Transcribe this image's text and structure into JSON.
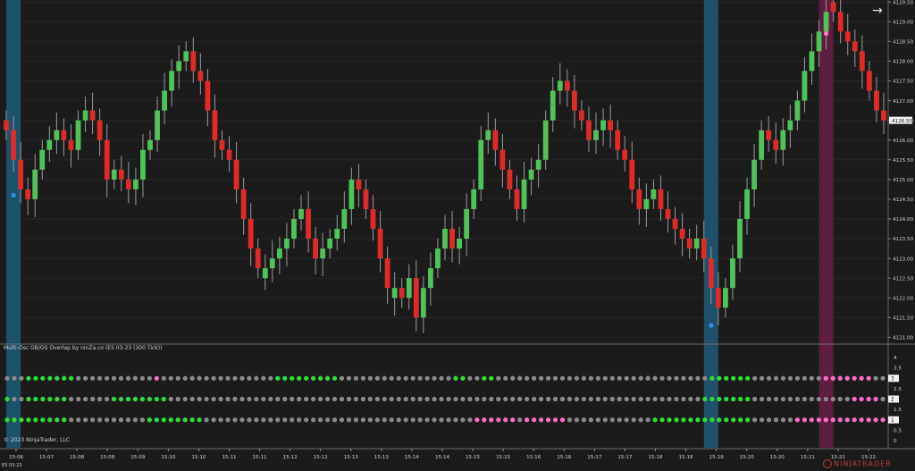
{
  "chart_data": {
    "type": "candlestick",
    "price_axis": {
      "ticks": [
        "4121.00",
        "4121.50",
        "4122.00",
        "4122.50",
        "4123.00",
        "4123.50",
        "4124.00",
        "4124.50",
        "4125.00",
        "4125.50",
        "4126.00",
        "4126.50",
        "4127.00",
        "4127.50",
        "4128.00",
        "4128.50",
        "4129.00",
        "4129.50"
      ],
      "range": [
        4120.85,
        4129.55
      ],
      "current_price": "4126.50"
    },
    "time_axis": {
      "labels": [
        "15:06",
        "15:07",
        "15:08",
        "15:08",
        "15:09",
        "15:10",
        "15:10",
        "15:11",
        "15:11",
        "15:12",
        "15:12",
        "15:13",
        "15:13",
        "15:14",
        "15:14",
        "15:15",
        "15:15",
        "15:16",
        "15:16",
        "15:17",
        "15:17",
        "15:18",
        "15:18",
        "15:19",
        "15:20",
        "15:20",
        "15:21",
        "15:21",
        "15:22"
      ]
    },
    "candles_close": [
      4126.25,
      4125.5,
      4124.75,
      4124.5,
      4125.25,
      4125.75,
      4126.0,
      4126.25,
      4126.0,
      4125.75,
      4126.5,
      4126.75,
      4126.5,
      4126.0,
      4125.0,
      4125.25,
      4125.0,
      4124.75,
      4125.0,
      4125.75,
      4126.0,
      4126.75,
      4127.25,
      4127.75,
      4128.0,
      4128.25,
      4127.75,
      4127.5,
      4126.75,
      4126.0,
      4125.75,
      4125.5,
      4124.75,
      4124.0,
      4123.25,
      4122.75,
      4122.75,
      4123.0,
      4123.25,
      4123.5,
      4124.0,
      4124.25,
      4123.5,
      4123.0,
      4123.25,
      4123.5,
      4123.75,
      4124.25,
      4125.0,
      4124.75,
      4124.25,
      4123.75,
      4123.0,
      4122.25,
      4122.25,
      4122.0,
      4122.5,
      4121.5,
      4122.25,
      4122.75,
      4123.25,
      4123.75,
      4123.25,
      4123.5,
      4124.25,
      4124.75,
      4126.0,
      4126.25,
      4125.75,
      4125.25,
      4124.75,
      4124.25,
      4125.0,
      4125.25,
      4125.5,
      4126.5,
      4127.25,
      4127.5,
      4127.25,
      4126.75,
      4126.5,
      4126.0,
      4126.25,
      4126.5,
      4126.25,
      4125.75,
      4125.5,
      4124.75,
      4124.25,
      4124.5,
      4124.75,
      4124.25,
      4124.0,
      4123.75,
      4123.5,
      4123.25,
      4123.5,
      4123.0,
      4122.25,
      4121.75,
      4122.25,
      4123.0,
      4124.0,
      4124.75,
      4125.5,
      4126.25,
      4126.0,
      4125.75,
      4126.25,
      4126.5,
      4127.0,
      4127.75,
      4128.25,
      4128.75,
      4129.25,
      4129.25,
      4128.75,
      4128.5,
      4128.25,
      4127.75,
      4127.25,
      4126.75,
      4126.5
    ],
    "highlight_bands": [
      {
        "candle_index": 1,
        "color": "#1e5a78"
      },
      {
        "candle_index": 98,
        "color": "#1e5a78"
      },
      {
        "candle_index": 114,
        "color": "#6a1f47"
      }
    ],
    "signal_dots": [
      {
        "candle_index": 1,
        "price": 4124.6,
        "color": "#2f8fe8"
      },
      {
        "candle_index": 98,
        "price": 4121.3,
        "color": "#2f8fe8"
      },
      {
        "candle_index": 114,
        "price": 4128.7,
        "color": "#ff7ac8"
      }
    ],
    "colors": {
      "up": "#4fc35a",
      "down": "#e02a2a",
      "wick": "#9a9a9a",
      "background": "#1b1b1b",
      "grid": "#262626",
      "axis_text": "#d0d0d0"
    }
  },
  "indicator": {
    "title": "Multi-Osc OB/OS Overlap by ninZa.co (ES 03-23 (300 Tick))",
    "axis_ticks": [
      "0",
      "0.5",
      "1",
      "1.5",
      "2",
      "2.5",
      "3",
      "3.5",
      "4"
    ],
    "row_labels": [
      "3",
      "2",
      "1"
    ],
    "row_values": [
      3,
      2,
      1
    ],
    "dot_count": 124,
    "colors": {
      "neutral": "#8a8a8a",
      "oversold": "#33dd33",
      "overbought": "#ff6ec7"
    },
    "row3_states": "nnnnnnnnnnnnnnnnnnnnnpnnnnnnnnnnnnnnnnnnnnnnnnnnnnnnnnnnnnnnnnnnnnnnnnnnnnnnnnnnnnnnnnnnnnnnnnnnnnnnnnnnnnnnnnnnnnnpppppppnnnnnnnnn",
    "row2_states": "nnnnnnnnnnnnnnnnnnnnnnnnnnnnnnnnnnnnnnnnnnnnnnnnnnnnnnnnnnnnnnnnnnnnnnnnnnnnnnnnnnnnnnnnnnnnnnnnnnnnnnnnnnnnnnnnnnnnnnnppppnnnnnnn",
    "row1_states": "nnnnnnnnnnnnnnnnnnnnnnnnnnnnnnnnnnnnnnnnnnnnnnnnnnnnnnnnnnnnnnnnnnnnnnnnnnnnnnnnnnnnnnnnnnnnnnnnnnnnnnnnnnnnnnnpppppppppppppppnnnnnnnnn"
  },
  "footer": {
    "copyright": "© 2023 NinjaTrader, LLC",
    "instrument": "ES 03-23",
    "brand": "NINJATRADER"
  }
}
